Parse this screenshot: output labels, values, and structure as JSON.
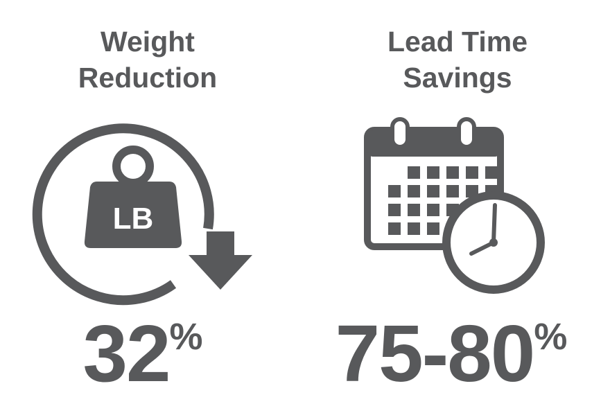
{
  "items": [
    {
      "title": [
        "Weight",
        "Reduction"
      ],
      "icon_label": "LB",
      "value": "32",
      "unit": "%"
    },
    {
      "title": [
        "Lead Time",
        "Savings"
      ],
      "value": "75-80",
      "unit": "%"
    }
  ]
}
